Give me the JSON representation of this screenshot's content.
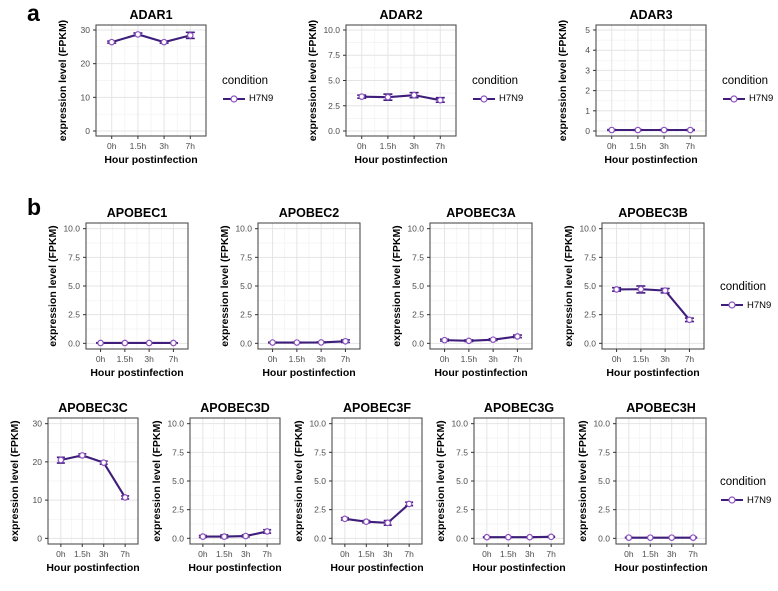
{
  "figure": {
    "panels": [
      {
        "label": "a"
      },
      {
        "label": "b"
      }
    ],
    "legend": {
      "title": "condition",
      "series_label": "H7N9"
    },
    "colors": {
      "line": "#3e1e7a",
      "marker_stroke": "#8c4fc0",
      "marker_fill": "#ffffff",
      "grid_major": "#e4e4e4",
      "grid_minor": "#f2f2f2",
      "panel_border": "#4e4e4e",
      "tick_mark": "#333333",
      "tick_text": "#4d4d4d",
      "text": "#000000"
    }
  },
  "chart_data": [
    {
      "type": "line",
      "panel": "a",
      "row": 0,
      "title": "ADAR1",
      "xlabel": "Hour postinfection",
      "ylabel": "expression level (FPKM)",
      "categories": [
        "0h",
        "1.5h",
        "3h",
        "7h"
      ],
      "ylim": [
        0,
        30
      ],
      "yticks": [
        0,
        10,
        20,
        30
      ],
      "ytick_labels": [
        "0",
        "10",
        "20",
        "30"
      ],
      "grid": true,
      "legend_position": "right",
      "show_legend": true,
      "series": [
        {
          "name": "H7N9",
          "values": [
            26.4,
            28.7,
            26.4,
            28.4
          ],
          "err_lo": [
            26.1,
            28.3,
            26.1,
            27.5
          ],
          "err_hi": [
            26.7,
            29.1,
            26.7,
            29.3
          ]
        }
      ]
    },
    {
      "type": "line",
      "panel": "a",
      "row": 0,
      "title": "ADAR2",
      "xlabel": "Hour postinfection",
      "ylabel": "expression level (FPKM)",
      "categories": [
        "0h",
        "1.5h",
        "3h",
        "7h"
      ],
      "ylim": [
        0,
        10
      ],
      "yticks": [
        0,
        2.5,
        5,
        7.5,
        10
      ],
      "ytick_labels": [
        "0.0",
        "2.5",
        "5.0",
        "7.5",
        "10.0"
      ],
      "grid": true,
      "legend_position": "right",
      "show_legend": true,
      "series": [
        {
          "name": "H7N9",
          "values": [
            3.4,
            3.35,
            3.55,
            3.05
          ],
          "err_lo": [
            3.25,
            3.05,
            3.3,
            2.85
          ],
          "err_hi": [
            3.55,
            3.65,
            3.8,
            3.3
          ]
        }
      ]
    },
    {
      "type": "line",
      "panel": "a",
      "row": 0,
      "title": "ADAR3",
      "xlabel": "Hour postinfection",
      "ylabel": "expression level (FPKM)",
      "categories": [
        "0h",
        "1.5h",
        "3h",
        "7h"
      ],
      "ylim": [
        0,
        5
      ],
      "yticks": [
        0,
        1,
        2,
        3,
        4,
        5
      ],
      "ytick_labels": [
        "0",
        "1",
        "2",
        "3",
        "4",
        "5"
      ],
      "grid": true,
      "legend_position": "right",
      "show_legend": true,
      "series": [
        {
          "name": "H7N9",
          "values": [
            0.05,
            0.05,
            0.05,
            0.05
          ],
          "err_lo": [
            0.03,
            0.03,
            0.03,
            0.03
          ],
          "err_hi": [
            0.07,
            0.07,
            0.07,
            0.07
          ]
        }
      ]
    },
    {
      "type": "line",
      "panel": "b",
      "row": 0,
      "title": "APOBEC1",
      "xlabel": "Hour postinfection",
      "ylabel": "expression level (FPKM)",
      "categories": [
        "0h",
        "1.5h",
        "3h",
        "7h"
      ],
      "ylim": [
        0,
        10
      ],
      "yticks": [
        0,
        2.5,
        5,
        7.5,
        10
      ],
      "ytick_labels": [
        "0.0",
        "2.5",
        "5.0",
        "7.5",
        "10.0"
      ],
      "grid": true,
      "legend_position": "right",
      "show_legend": false,
      "series": [
        {
          "name": "H7N9",
          "values": [
            0.03,
            0.03,
            0.03,
            0.03
          ],
          "err_lo": [
            0.02,
            0.02,
            0.02,
            0.02
          ],
          "err_hi": [
            0.05,
            0.05,
            0.05,
            0.05
          ]
        }
      ]
    },
    {
      "type": "line",
      "panel": "b",
      "row": 0,
      "title": "APOBEC2",
      "xlabel": "Hour postinfection",
      "ylabel": "expression level (FPKM)",
      "categories": [
        "0h",
        "1.5h",
        "3h",
        "7h"
      ],
      "ylim": [
        0,
        10
      ],
      "yticks": [
        0,
        2.5,
        5,
        7.5,
        10
      ],
      "ytick_labels": [
        "0.0",
        "2.5",
        "5.0",
        "7.5",
        "10.0"
      ],
      "grid": true,
      "legend_position": "right",
      "show_legend": false,
      "series": [
        {
          "name": "H7N9",
          "values": [
            0.07,
            0.07,
            0.08,
            0.18
          ],
          "err_lo": [
            0.04,
            0.04,
            0.05,
            0.08
          ],
          "err_hi": [
            0.1,
            0.1,
            0.12,
            0.3
          ]
        }
      ]
    },
    {
      "type": "line",
      "panel": "b",
      "row": 0,
      "title": "APOBEC3A",
      "xlabel": "Hour postinfection",
      "ylabel": "expression level (FPKM)",
      "categories": [
        "0h",
        "1.5h",
        "3h",
        "7h"
      ],
      "ylim": [
        0,
        10
      ],
      "yticks": [
        0,
        2.5,
        5,
        7.5,
        10
      ],
      "ytick_labels": [
        "0.0",
        "2.5",
        "5.0",
        "7.5",
        "10.0"
      ],
      "grid": true,
      "legend_position": "right",
      "show_legend": false,
      "series": [
        {
          "name": "H7N9",
          "values": [
            0.28,
            0.22,
            0.32,
            0.6
          ],
          "err_lo": [
            0.2,
            0.16,
            0.25,
            0.5
          ],
          "err_hi": [
            0.36,
            0.3,
            0.4,
            0.72
          ]
        }
      ]
    },
    {
      "type": "line",
      "panel": "b",
      "row": 0,
      "title": "APOBEC3B",
      "xlabel": "Hour postinfection",
      "ylabel": "expression level (FPKM)",
      "categories": [
        "0h",
        "1.5h",
        "3h",
        "7h"
      ],
      "ylim": [
        0,
        10
      ],
      "yticks": [
        0,
        2.5,
        5,
        7.5,
        10
      ],
      "ytick_labels": [
        "0.0",
        "2.5",
        "5.0",
        "7.5",
        "10.0"
      ],
      "grid": true,
      "legend_position": "right",
      "show_legend": true,
      "series": [
        {
          "name": "H7N9",
          "values": [
            4.7,
            4.72,
            4.6,
            2.05
          ],
          "err_lo": [
            4.55,
            4.4,
            4.4,
            1.9
          ],
          "err_hi": [
            4.85,
            5.0,
            4.78,
            2.2
          ]
        }
      ]
    },
    {
      "type": "line",
      "panel": "b",
      "row": 1,
      "title": "APOBEC3C",
      "xlabel": "Hour postinfection",
      "ylabel": "expression level (FPKM)",
      "categories": [
        "0h",
        "1.5h",
        "3h",
        "7h"
      ],
      "ylim": [
        0,
        30
      ],
      "yticks": [
        0,
        10,
        20,
        30
      ],
      "ytick_labels": [
        "0",
        "10",
        "20",
        "30"
      ],
      "grid": true,
      "legend_position": "right",
      "show_legend": false,
      "series": [
        {
          "name": "H7N9",
          "values": [
            20.5,
            21.7,
            19.8,
            10.7
          ],
          "err_lo": [
            19.7,
            21.3,
            19.4,
            10.3
          ],
          "err_hi": [
            21.2,
            22.1,
            20.2,
            11.1
          ]
        }
      ]
    },
    {
      "type": "line",
      "panel": "b",
      "row": 1,
      "title": "APOBEC3D",
      "xlabel": "Hour postinfection",
      "ylabel": "expression level (FPKM)",
      "categories": [
        "0h",
        "1.5h",
        "3h",
        "7h"
      ],
      "ylim": [
        0,
        10
      ],
      "yticks": [
        0,
        2.5,
        5,
        7.5,
        10
      ],
      "ytick_labels": [
        "0.0",
        "2.5",
        "5.0",
        "7.5",
        "10.0"
      ],
      "grid": true,
      "legend_position": "right",
      "show_legend": false,
      "series": [
        {
          "name": "H7N9",
          "values": [
            0.15,
            0.15,
            0.2,
            0.6
          ],
          "err_lo": [
            0.08,
            0.05,
            0.12,
            0.45
          ],
          "err_hi": [
            0.25,
            0.3,
            0.3,
            0.75
          ]
        }
      ]
    },
    {
      "type": "line",
      "panel": "b",
      "row": 1,
      "title": "APOBEC3F",
      "xlabel": "Hour postinfection",
      "ylabel": "expression level (FPKM)",
      "categories": [
        "0h",
        "1.5h",
        "3h",
        "7h"
      ],
      "ylim": [
        0,
        10
      ],
      "yticks": [
        0,
        2.5,
        5,
        7.5,
        10
      ],
      "ytick_labels": [
        "0.0",
        "2.5",
        "5.0",
        "7.5",
        "10.0"
      ],
      "grid": true,
      "legend_position": "right",
      "show_legend": false,
      "series": [
        {
          "name": "H7N9",
          "values": [
            1.7,
            1.45,
            1.35,
            3.0
          ],
          "err_lo": [
            1.6,
            1.35,
            1.15,
            2.85
          ],
          "err_hi": [
            1.8,
            1.55,
            1.55,
            3.15
          ]
        }
      ]
    },
    {
      "type": "line",
      "panel": "b",
      "row": 1,
      "title": "APOBEC3G",
      "xlabel": "Hour postinfection",
      "ylabel": "expression level (FPKM)",
      "categories": [
        "0h",
        "1.5h",
        "3h",
        "7h"
      ],
      "ylim": [
        0,
        10
      ],
      "yticks": [
        0,
        2.5,
        5,
        7.5,
        10
      ],
      "ytick_labels": [
        "0.0",
        "2.5",
        "5.0",
        "7.5",
        "10.0"
      ],
      "grid": true,
      "legend_position": "right",
      "show_legend": false,
      "series": [
        {
          "name": "H7N9",
          "values": [
            0.1,
            0.1,
            0.1,
            0.13
          ],
          "err_lo": [
            0.07,
            0.07,
            0.07,
            0.09
          ],
          "err_hi": [
            0.13,
            0.13,
            0.13,
            0.17
          ]
        }
      ]
    },
    {
      "type": "line",
      "panel": "b",
      "row": 1,
      "title": "APOBEC3H",
      "xlabel": "Hour postinfection",
      "ylabel": "expression level (FPKM)",
      "categories": [
        "0h",
        "1.5h",
        "3h",
        "7h"
      ],
      "ylim": [
        0,
        10
      ],
      "yticks": [
        0,
        2.5,
        5,
        7.5,
        10
      ],
      "ytick_labels": [
        "0.0",
        "2.5",
        "5.0",
        "7.5",
        "10.0"
      ],
      "grid": true,
      "legend_position": "right",
      "show_legend": true,
      "series": [
        {
          "name": "H7N9",
          "values": [
            0.06,
            0.06,
            0.06,
            0.06
          ],
          "err_lo": [
            0.04,
            0.04,
            0.04,
            0.04
          ],
          "err_hi": [
            0.09,
            0.09,
            0.09,
            0.09
          ]
        }
      ]
    }
  ]
}
